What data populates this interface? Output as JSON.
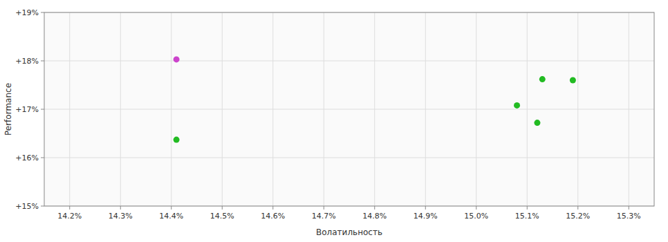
{
  "chart_data": {
    "type": "scatter",
    "xlabel": "Волатильность",
    "ylabel": "Performance",
    "x": [
      14.41,
      14.41,
      15.08,
      15.12,
      15.13,
      15.19
    ],
    "values": [
      18.03,
      16.37,
      17.08,
      16.72,
      17.62,
      17.6
    ],
    "colors": [
      "#cc44cc",
      "#22bb22",
      "#22bb22",
      "#22bb22",
      "#22bb22",
      "#22bb22"
    ],
    "xlim": [
      14.15,
      15.35
    ],
    "ylim": [
      15.0,
      19.0
    ],
    "xticks": [
      {
        "value": 14.2,
        "label": "14.2%"
      },
      {
        "value": 14.3,
        "label": "14.3%"
      },
      {
        "value": 14.4,
        "label": "14.4%"
      },
      {
        "value": 14.5,
        "label": "14.5%"
      },
      {
        "value": 14.6,
        "label": "14.6%"
      },
      {
        "value": 14.7,
        "label": "14.7%"
      },
      {
        "value": 14.8,
        "label": "14.8%"
      },
      {
        "value": 14.9,
        "label": "14.9%"
      },
      {
        "value": 15.0,
        "label": "15.0%"
      },
      {
        "value": 15.1,
        "label": "15.1%"
      },
      {
        "value": 15.2,
        "label": "15.2%"
      },
      {
        "value": 15.3,
        "label": "15.3%"
      }
    ],
    "yticks": [
      {
        "value": 15.0,
        "label": "+15%"
      },
      {
        "value": 16.0,
        "label": "+16%"
      },
      {
        "value": 17.0,
        "label": "+17%"
      },
      {
        "value": 18.0,
        "label": "+18%"
      },
      {
        "value": 19.0,
        "label": "+19%"
      }
    ],
    "grid": true
  }
}
